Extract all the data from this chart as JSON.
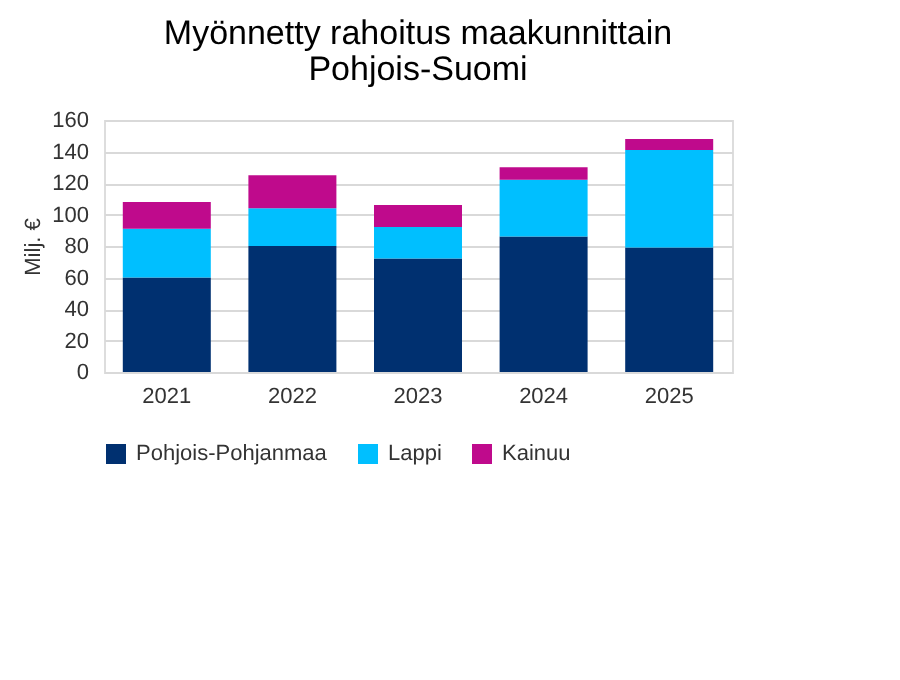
{
  "chart_data": {
    "type": "bar",
    "title": "Myönnetty rahoitus maakunnittain",
    "subtitle": "Pohjois-Suomi",
    "ylabel": "Milj. €",
    "categories": [
      "2021",
      "2022",
      "2023",
      "2024",
      "2025"
    ],
    "stacked": true,
    "series": [
      {
        "name": "Pohjois-Pohjanmaa",
        "color": "#003070",
        "values": [
          60,
          80,
          72,
          86,
          79
        ]
      },
      {
        "name": "Lappi",
        "color": "#00bfff",
        "values": [
          31,
          24,
          20,
          36,
          62
        ]
      },
      {
        "name": "Kainuu",
        "color": "#bf0a8c",
        "values": [
          17,
          21,
          14,
          8,
          7
        ]
      }
    ],
    "ylim": [
      0,
      160
    ],
    "yticks": [
      0,
      20,
      40,
      60,
      80,
      100,
      120,
      140,
      160
    ],
    "grid": "y",
    "legend": "bottom"
  }
}
